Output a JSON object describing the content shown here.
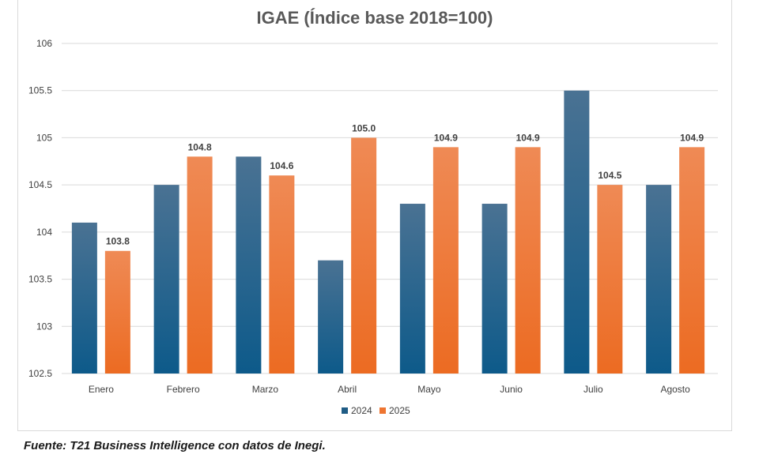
{
  "chart_data": {
    "type": "bar",
    "title": "IGAE (Índice base 2018=100)",
    "categories": [
      "Enero",
      "Febrero",
      "Marzo",
      "Abril",
      "Mayo",
      "Junio",
      "Julio",
      "Agosto"
    ],
    "series": [
      {
        "name": "2024",
        "color": "#1f5c85",
        "values": [
          104.1,
          104.5,
          104.8,
          103.7,
          104.3,
          104.3,
          105.5,
          104.5
        ],
        "data_labels": null
      },
      {
        "name": "2025",
        "color": "#ee7531",
        "values": [
          103.8,
          104.8,
          104.6,
          105.0,
          104.9,
          104.9,
          104.5,
          104.9
        ],
        "data_labels": [
          "103.8",
          "104.8",
          "104.6",
          "105.0",
          "104.9",
          "104.9",
          "104.5",
          "104.9"
        ]
      }
    ],
    "ylim": [
      102.5,
      106
    ],
    "yticks": [
      "102.5",
      "103",
      "103.5",
      "104",
      "104.5",
      "105",
      "105.5",
      "106"
    ],
    "ytick_values": [
      102.5,
      103,
      103.5,
      104,
      104.5,
      105,
      105.5,
      106
    ],
    "xlabel": "",
    "ylabel": "",
    "grid": true,
    "legend_position": "bottom"
  },
  "source_note": "Fuente: T21 Business Intelligence con datos de Inegi."
}
